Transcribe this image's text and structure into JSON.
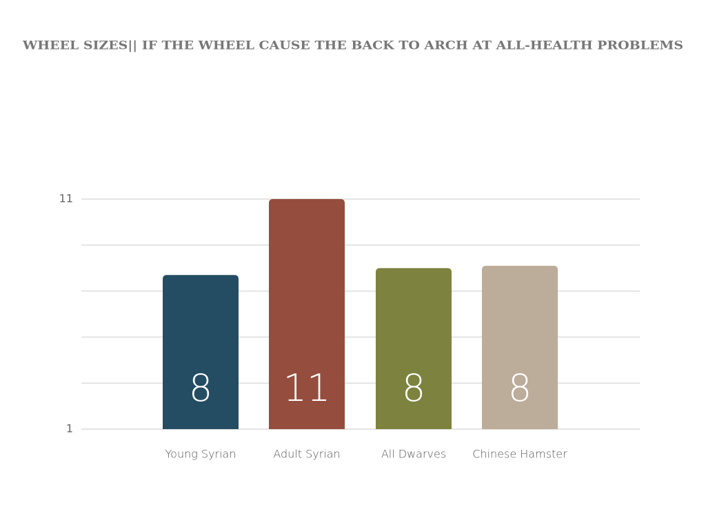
{
  "chart_data": {
    "type": "bar",
    "title": "WHEEL SIZES|| IF THE WHEEL CAUSE THE BACK TO ARCH AT ALL-HEALTH PROBLEMS",
    "categories": [
      "Young Syrian",
      "Adult Syrian",
      "All Dwarves",
      "Chinese Hamster"
    ],
    "values": [
      7.7,
      11,
      8,
      8.1
    ],
    "value_labels": [
      "8",
      "11",
      "8",
      "8"
    ],
    "colors": [
      "#244d63",
      "#954d3e",
      "#7d823f",
      "#bcac9a"
    ],
    "ylim": [
      1,
      11
    ],
    "yticks": [
      1,
      11
    ],
    "ygrid": [
      1,
      3,
      5,
      7,
      9,
      11
    ],
    "grid": true
  }
}
